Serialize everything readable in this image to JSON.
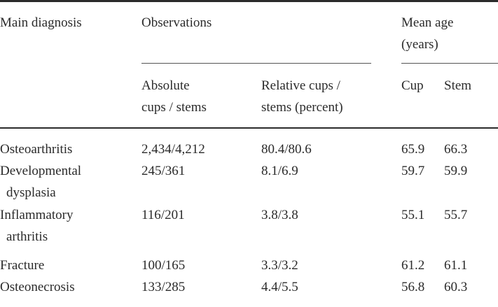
{
  "table": {
    "headers": {
      "main_diagnosis": "Main diagnosis",
      "observations": "Observations",
      "mean_age_line1": "Mean age",
      "mean_age_line2": "(years)",
      "absolute_line1": "Absolute",
      "absolute_line2": "cups / stems",
      "relative_line1": "Relative cups /",
      "relative_line2": "stems (percent)",
      "cup": "Cup",
      "stem": "Stem"
    },
    "rows": [
      {
        "diagnosis_line1": "Osteoarthritis",
        "diagnosis_line2": "",
        "absolute": "2,434/4,212",
        "relative": "80.4/80.6",
        "cup": "65.9",
        "stem": "66.3"
      },
      {
        "diagnosis_line1": "Developmental",
        "diagnosis_line2": "dysplasia",
        "absolute": "245/361",
        "relative": "8.1/6.9",
        "cup": "59.7",
        "stem": "59.9"
      },
      {
        "diagnosis_line1": "Inflammatory",
        "diagnosis_line2": "arthritis",
        "absolute": "116/201",
        "relative": "3.8/3.8",
        "cup": "55.1",
        "stem": "55.7"
      },
      {
        "diagnosis_line1": "Fracture",
        "diagnosis_line2": "",
        "absolute": "100/165",
        "relative": "3.3/3.2",
        "cup": "61.2",
        "stem": "61.1"
      },
      {
        "diagnosis_line1": "Osteonecrosis",
        "diagnosis_line2": "",
        "absolute": "133/285",
        "relative": "4.4/5.5",
        "cup": "56.8",
        "stem": "60.3"
      }
    ]
  }
}
